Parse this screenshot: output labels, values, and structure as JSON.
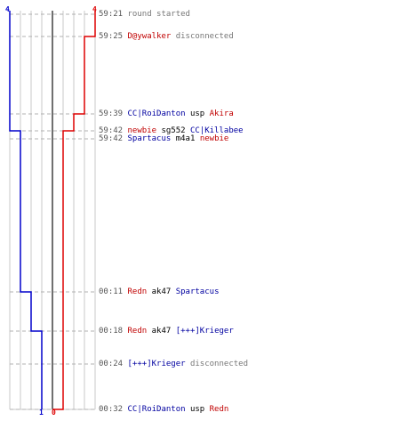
{
  "timeline": {
    "team_colors": {
      "blue": "#0000cc",
      "red": "#dd0000"
    },
    "start_counts": {
      "blue": "4",
      "red": "4"
    },
    "end_counts": {
      "blue": "1",
      "red": "0"
    },
    "events": [
      {
        "time": "59:21",
        "parts": [
          {
            "text": "round started",
            "style": "info"
          }
        ]
      },
      {
        "time": "59:25",
        "parts": [
          {
            "text": "D@ywalker",
            "style": "red"
          },
          {
            "text": " disconnected",
            "style": "info"
          }
        ]
      },
      {
        "time": "59:39",
        "parts": [
          {
            "text": "CC|RoiDanton",
            "style": "blue"
          },
          {
            "text": " usp ",
            "style": "black"
          },
          {
            "text": "Akira",
            "style": "red"
          }
        ]
      },
      {
        "time": "59:42",
        "parts": [
          {
            "text": "newbie",
            "style": "red"
          },
          {
            "text": " sg552 ",
            "style": "black"
          },
          {
            "text": "CC|Killabee",
            "style": "blue"
          }
        ]
      },
      {
        "time": "59:42",
        "parts": [
          {
            "text": "Spartacus",
            "style": "blue"
          },
          {
            "text": " m4a1 ",
            "style": "black"
          },
          {
            "text": "newbie",
            "style": "red"
          }
        ]
      },
      {
        "time": "00:11",
        "parts": [
          {
            "text": "Redn",
            "style": "red"
          },
          {
            "text": " ak47 ",
            "style": "black"
          },
          {
            "text": "Spartacus",
            "style": "blue"
          }
        ]
      },
      {
        "time": "00:18",
        "parts": [
          {
            "text": "Redn",
            "style": "red"
          },
          {
            "text": " ak47 ",
            "style": "black"
          },
          {
            "text": "[+++]Krieger",
            "style": "blue"
          }
        ]
      },
      {
        "time": "00:24",
        "parts": [
          {
            "text": "[+++]Krieger",
            "style": "blue"
          },
          {
            "text": " disconnected",
            "style": "info"
          }
        ]
      },
      {
        "time": "00:32",
        "parts": [
          {
            "text": "CC|RoiDanton",
            "style": "blue"
          },
          {
            "text": " usp ",
            "style": "black"
          },
          {
            "text": "Redn",
            "style": "red"
          }
        ]
      }
    ]
  }
}
